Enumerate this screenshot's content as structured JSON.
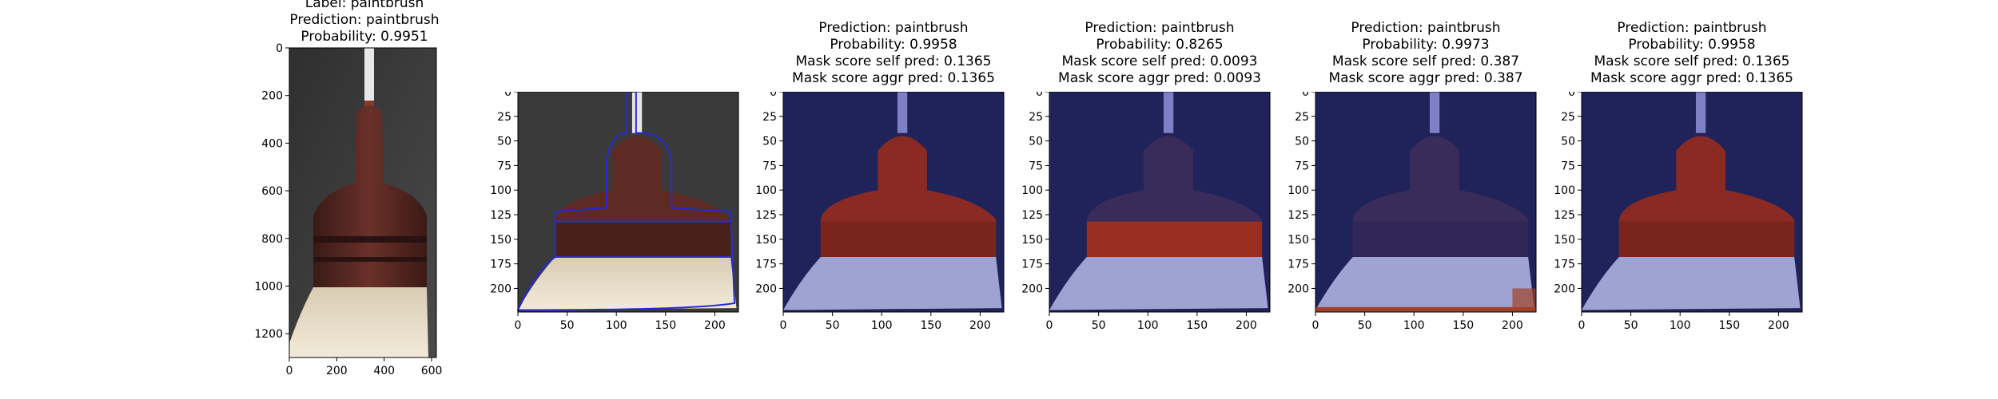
{
  "panels": [
    {
      "title": [
        "Label: paintbrush",
        "Prediction: paintbrush",
        "Probability: 0.9951"
      ],
      "xticks": [
        "0",
        "200",
        "400",
        "600"
      ],
      "yticks": [
        "0",
        "200",
        "400",
        "600",
        "800",
        "1000",
        "1200"
      ],
      "content": "original photo of paintbrush"
    },
    {
      "title": [],
      "xticks": [
        "0",
        "50",
        "100",
        "150",
        "200"
      ],
      "yticks": [
        "0",
        "25",
        "50",
        "75",
        "100",
        "125",
        "150",
        "175",
        "200"
      ],
      "content": "resized image with blue segmentation outline"
    },
    {
      "title": [
        "Prediction: paintbrush",
        "Probability: 0.9958",
        "Mask score self pred: 0.1365",
        "Mask score aggr pred: 0.1365"
      ],
      "xticks": [
        "0",
        "50",
        "100",
        "150",
        "200"
      ],
      "yticks": [
        "0",
        "25",
        "50",
        "75",
        "100",
        "125",
        "150",
        "175",
        "200"
      ],
      "content": "mask overlay: head and ferrule highlighted red"
    },
    {
      "title": [
        "Prediction: paintbrush",
        "Probability: 0.8265",
        "Mask score self pred: 0.0093",
        "Mask score aggr pred: 0.0093"
      ],
      "xticks": [
        "0",
        "50",
        "100",
        "150",
        "200"
      ],
      "yticks": [
        "0",
        "25",
        "50",
        "75",
        "100",
        "125",
        "150",
        "175",
        "200"
      ],
      "content": "mask overlay: ferrule band highlighted red"
    },
    {
      "title": [
        "Prediction: paintbrush",
        "Probability: 0.9973",
        "Mask score self pred: 0.387",
        "Mask score aggr pred: 0.387"
      ],
      "xticks": [
        "0",
        "50",
        "100",
        "150",
        "200"
      ],
      "yticks": [
        "0",
        "25",
        "50",
        "75",
        "100",
        "125",
        "150",
        "175",
        "200"
      ],
      "content": "mask overlay: bottom strip highlighted red"
    },
    {
      "title": [
        "Prediction: paintbrush",
        "Probability: 0.9958",
        "Mask score self pred: 0.1365",
        "Mask score aggr pred: 0.1365"
      ],
      "xticks": [
        "0",
        "50",
        "100",
        "150",
        "200"
      ],
      "yticks": [
        "0",
        "25",
        "50",
        "75",
        "100",
        "125",
        "150",
        "175",
        "200"
      ],
      "content": "mask overlay: head and ferrule highlighted red"
    }
  ]
}
